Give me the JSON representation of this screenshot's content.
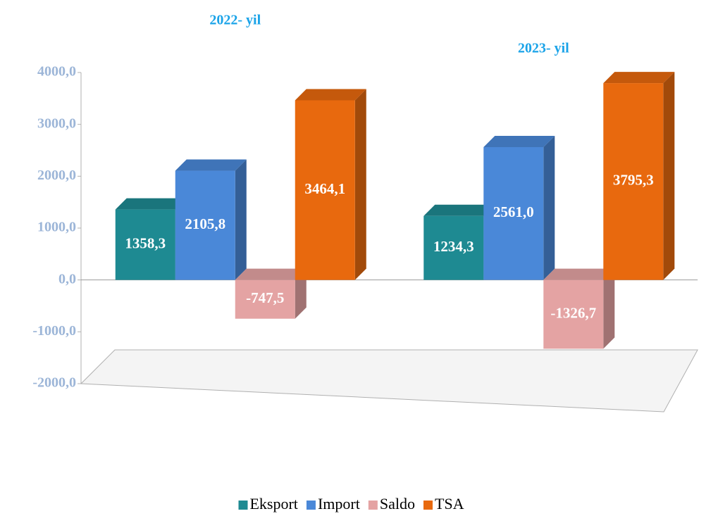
{
  "chart_data": {
    "type": "bar3d",
    "categories": [
      "2022- yil",
      "2023- yil"
    ],
    "series": [
      {
        "name": "Eksport",
        "color": "#1e8a92",
        "values": [
          1358.3,
          1234.3
        ],
        "value_labels": [
          "1358,3",
          "1234,3"
        ]
      },
      {
        "name": "Import",
        "color": "#4a88d8",
        "values": [
          2105.8,
          2561.0
        ],
        "value_labels": [
          "2105,8",
          "2561,0"
        ]
      },
      {
        "name": "Saldo",
        "color": "#e4a3a3",
        "values": [
          -747.5,
          -1326.7
        ],
        "value_labels": [
          "-747,5",
          "-1326,7"
        ]
      },
      {
        "name": "TSA",
        "color": "#e8690e",
        "values": [
          3464.1,
          3795.3
        ],
        "value_labels": [
          "3464,1",
          "3795,3"
        ]
      }
    ],
    "ylim": [
      -2000,
      4000
    ],
    "yticks": [
      {
        "value": -2000,
        "label": "-2000,0"
      },
      {
        "value": -1000,
        "label": "-1000,0"
      },
      {
        "value": 0,
        "label": "0,0"
      },
      {
        "value": 1000,
        "label": "1000,0"
      },
      {
        "value": 2000,
        "label": "2000,0"
      },
      {
        "value": 3000,
        "label": "3000,0"
      },
      {
        "value": 4000,
        "label": "4000,0"
      }
    ],
    "legend": "bottom"
  }
}
